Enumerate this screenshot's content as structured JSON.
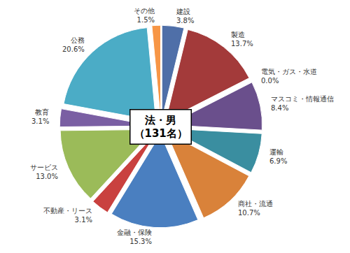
{
  "chart_data": {
    "type": "pie",
    "title": "法・男",
    "subtitle": "（131名）",
    "categories": [
      "建設",
      "製造",
      "電気・ガス・水道",
      "マスコミ・情報通信",
      "運輸",
      "商社・流通",
      "金融・保険",
      "不動産・リース",
      "サービス",
      "教育",
      "公務",
      "その他"
    ],
    "values": [
      3.8,
      13.7,
      0.0,
      8.4,
      6.9,
      10.7,
      15.3,
      3.1,
      13.0,
      3.1,
      20.6,
      1.5
    ],
    "value_labels": [
      "3.8%",
      "13.7%",
      "0.0%",
      "8.4%",
      "6.9%",
      "10.7%",
      "15.3%",
      "3.1%",
      "13.0%",
      "3.1%",
      "20.6%",
      "1.5%"
    ],
    "colors": [
      "#4f6fa8",
      "#a33a3a",
      "#7a9a3a",
      "#6a4f8c",
      "#3a8ea0",
      "#d9823a",
      "#4a7fc0",
      "#c9413f",
      "#9bbb59",
      "#7a5fa3",
      "#4bacc6",
      "#f79646"
    ],
    "data_labels": true
  }
}
